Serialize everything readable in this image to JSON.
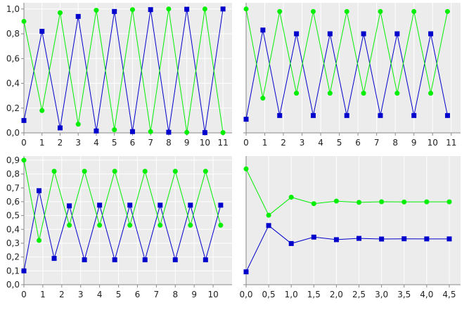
{
  "colors": {
    "series_a": "#0000cc",
    "series_b": "#00ee00",
    "plot_bg": "#ececec",
    "grid": "#ffffff"
  },
  "chart_data": [
    {
      "type": "line",
      "grid": true,
      "xlim": [
        0,
        11.5
      ],
      "ylim": [
        0,
        1.05
      ],
      "xticks": [
        0,
        1,
        2,
        3,
        4,
        5,
        6,
        7,
        8,
        9,
        10,
        11
      ],
      "yticks": [
        0,
        0.2,
        0.4,
        0.6,
        0.8,
        1.0
      ],
      "xtick_labels": [
        "0",
        "1",
        "2",
        "3",
        "4",
        "5",
        "6",
        "7",
        "8",
        "9",
        "10",
        "11"
      ],
      "ytick_labels": [
        "0,0",
        "0,2",
        "0,4",
        "0,6",
        "0,8",
        "1,0"
      ],
      "series": [
        {
          "color": "#0000cc",
          "marker": "square",
          "x": [
            0,
            1,
            2,
            3,
            4,
            5,
            6,
            7,
            8,
            9,
            10,
            11
          ],
          "y": [
            0.1,
            0.82,
            0.04,
            0.94,
            0.015,
            0.98,
            0.01,
            0.995,
            0.005,
            0.998,
            0.002,
            1.0
          ]
        },
        {
          "color": "#00ee00",
          "marker": "circle",
          "x": [
            0,
            1,
            2,
            3,
            4,
            5,
            6,
            7,
            8,
            9,
            10,
            11
          ],
          "y": [
            0.9,
            0.18,
            0.97,
            0.07,
            0.99,
            0.025,
            0.995,
            0.01,
            1.0,
            0.004,
            1.0,
            0.002
          ]
        }
      ]
    },
    {
      "type": "line",
      "grid": true,
      "xlim": [
        0,
        11.5
      ],
      "ylim": [
        0,
        1.05
      ],
      "xticks": [
        0,
        1,
        2,
        3,
        4,
        5,
        6,
        7,
        8,
        9,
        10,
        11
      ],
      "yticks": [],
      "xtick_labels": [
        "0",
        "1",
        "2",
        "3",
        "4",
        "5",
        "6",
        "7",
        "8",
        "9",
        "10",
        "11"
      ],
      "ytick_labels": [],
      "series": [
        {
          "color": "#0000cc",
          "marker": "square",
          "x": [
            0,
            0.9,
            1.8,
            2.7,
            3.6,
            4.5,
            5.4,
            6.3,
            7.2,
            8.1,
            9.0,
            9.9,
            10.8
          ],
          "y": [
            0.11,
            0.83,
            0.14,
            0.8,
            0.14,
            0.8,
            0.14,
            0.8,
            0.14,
            0.8,
            0.14,
            0.8,
            0.14
          ]
        },
        {
          "color": "#00ee00",
          "marker": "circle",
          "x": [
            0,
            0.9,
            1.8,
            2.7,
            3.6,
            4.5,
            5.4,
            6.3,
            7.2,
            8.1,
            9.0,
            9.9,
            10.8
          ],
          "y": [
            1.0,
            0.28,
            0.98,
            0.32,
            0.98,
            0.32,
            0.98,
            0.32,
            0.98,
            0.32,
            0.98,
            0.32,
            0.98
          ]
        }
      ]
    },
    {
      "type": "line",
      "grid": true,
      "xlim": [
        0,
        11.0
      ],
      "ylim": [
        0,
        0.93
      ],
      "xticks": [
        0,
        1,
        2,
        3,
        4,
        5,
        6,
        7,
        8,
        9,
        10
      ],
      "yticks": [
        0,
        0.1,
        0.2,
        0.3,
        0.4,
        0.5,
        0.6,
        0.7,
        0.8,
        0.9
      ],
      "xtick_labels": [
        "0",
        "1",
        "2",
        "3",
        "4",
        "5",
        "6",
        "7",
        "8",
        "9",
        "10"
      ],
      "ytick_labels": [
        "0,0",
        "0,1",
        "0,2",
        "0,3",
        "0,4",
        "0,5",
        "0,6",
        "0,7",
        "0,8",
        "0,9"
      ],
      "series": [
        {
          "color": "#0000cc",
          "marker": "square",
          "x": [
            0,
            0.8,
            1.6,
            2.4,
            3.2,
            4.0,
            4.8,
            5.6,
            6.4,
            7.2,
            8.0,
            8.8,
            9.6,
            10.4
          ],
          "y": [
            0.1,
            0.68,
            0.19,
            0.57,
            0.18,
            0.575,
            0.18,
            0.575,
            0.18,
            0.575,
            0.18,
            0.575,
            0.18,
            0.575
          ]
        },
        {
          "color": "#00ee00",
          "marker": "circle",
          "x": [
            0,
            0.8,
            1.6,
            2.4,
            3.2,
            4.0,
            4.8,
            5.6,
            6.4,
            7.2,
            8.0,
            8.8,
            9.6,
            10.4
          ],
          "y": [
            0.9,
            0.32,
            0.82,
            0.43,
            0.82,
            0.43,
            0.82,
            0.43,
            0.82,
            0.43,
            0.82,
            0.43,
            0.82,
            0.43
          ]
        }
      ]
    },
    {
      "type": "line",
      "grid": true,
      "xlim": [
        0,
        4.75
      ],
      "ylim": [
        0,
        1.0
      ],
      "xticks": [
        0,
        0.5,
        1.0,
        1.5,
        2.0,
        2.5,
        3.0,
        3.5,
        4.0,
        4.5
      ],
      "yticks": [],
      "xtick_labels": [
        "0,0",
        "0,5",
        "1,0",
        "1,5",
        "2,0",
        "2,5",
        "3,0",
        "3,5",
        "4,0",
        "4,5"
      ],
      "ytick_labels": [],
      "series": [
        {
          "color": "#0000cc",
          "marker": "square",
          "x": [
            0,
            0.5,
            1.0,
            1.5,
            2.0,
            2.5,
            3.0,
            3.5,
            4.0,
            4.5
          ],
          "y": [
            0.1,
            0.46,
            0.32,
            0.37,
            0.35,
            0.36,
            0.355,
            0.357,
            0.356,
            0.356
          ]
        },
        {
          "color": "#00ee00",
          "marker": "circle",
          "x": [
            0,
            0.5,
            1.0,
            1.5,
            2.0,
            2.5,
            3.0,
            3.5,
            4.0,
            4.5
          ],
          "y": [
            0.9,
            0.54,
            0.68,
            0.63,
            0.65,
            0.64,
            0.645,
            0.643,
            0.644,
            0.644
          ]
        }
      ]
    }
  ]
}
